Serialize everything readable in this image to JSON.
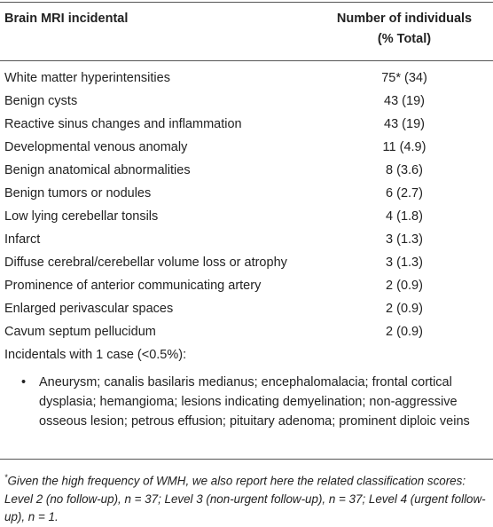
{
  "table": {
    "header": [
      "Brain MRI incidental",
      [
        "Number of individuals",
        "(% Total)"
      ]
    ],
    "rows": [
      [
        "White matter hyperintensities",
        "75* (34)"
      ],
      [
        "Benign cysts",
        "43 (19)"
      ],
      [
        "Reactive sinus changes and inflammation",
        "43 (19)"
      ],
      [
        "Developmental venous anomaly",
        "11 (4.9)"
      ],
      [
        "Benign anatomical abnormalities",
        "8 (3.6)"
      ],
      [
        "Benign tumors or nodules",
        "6 (2.7)"
      ],
      [
        "Low lying cerebellar tonsils",
        "4 (1.8)"
      ],
      [
        "Infarct",
        "3 (1.3)"
      ],
      [
        "Diffuse cerebral/cerebellar volume loss or atrophy",
        "3 (1.3)"
      ],
      [
        "Prominence of anterior communicating artery",
        "2 (0.9)"
      ],
      [
        "Enlarged perivascular spaces",
        "2 (0.9)"
      ],
      [
        "Cavum septum pellucidum",
        "2 (0.9)"
      ]
    ],
    "single_case": {
      "label": "Incidentals with 1 case (<0.5%):",
      "items": [
        "Aneurysm; canalis basilaris medianus; encephalomalacia; frontal cortical dysplasia; hemangioma; lesions indicating demyelination; non-aggressive osseous lesion; petrous effusion; pituitary adenoma; prominent diploic veins"
      ]
    }
  },
  "footnote": {
    "marker": "*",
    "text": "Given the high frequency of WMH, we also report here the related classification scores: Level 2 (no follow-up), n = 37; Level 3 (non-urgent follow-up), n = 37; Level 4 (urgent follow-up), n = 1."
  }
}
